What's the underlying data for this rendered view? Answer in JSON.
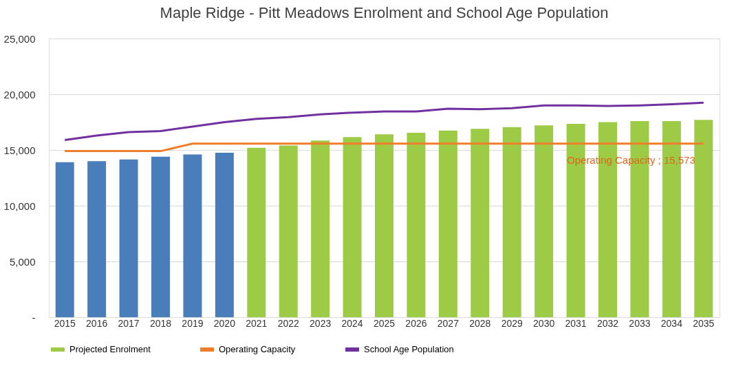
{
  "chart_data": {
    "type": "bar",
    "title": "Maple Ridge - Pitt Meadows Enrolment and School Age Population",
    "categories": [
      "2015",
      "2016",
      "2017",
      "2018",
      "2019",
      "2020",
      "2021",
      "2022",
      "2023",
      "2024",
      "2025",
      "2026",
      "2027",
      "2028",
      "2029",
      "2030",
      "2031",
      "2032",
      "2033",
      "2034",
      "2035"
    ],
    "stacked": true,
    "series": [
      {
        "color": "#4a7ebb",
        "values": [
          13900,
          14000,
          14150,
          14400,
          14600,
          14750,
          null,
          null,
          null,
          null,
          null,
          null,
          null,
          null,
          null,
          null,
          null,
          null,
          null,
          null,
          null
        ]
      },
      {
        "name": "Projected Enrolment",
        "color": "#9dcb45",
        "values": [
          null,
          null,
          null,
          null,
          null,
          null,
          15200,
          15400,
          15850,
          16150,
          16400,
          16550,
          16750,
          16900,
          17050,
          17200,
          17350,
          17500,
          17600,
          17600,
          17700
        ]
      },
      {
        "name": "Operating Capacity",
        "type": "line",
        "color": "#f07d2a",
        "values": [
          14900,
          14900,
          14900,
          14900,
          15573,
          15573,
          15573,
          15573,
          15573,
          15573,
          15573,
          15573,
          15573,
          15573,
          15573,
          15573,
          15573,
          15573,
          15573,
          15573,
          15573
        ]
      },
      {
        "name": "School Age Population",
        "type": "line",
        "color": "#7030a0",
        "values": [
          15900,
          16300,
          16600,
          16700,
          17100,
          17500,
          17800,
          17950,
          18200,
          18350,
          18450,
          18450,
          18700,
          18650,
          18750,
          19000,
          19000,
          18950,
          19000,
          19100,
          19250
        ]
      }
    ],
    "annotations": [
      {
        "text": "Operating Capacity ; 15,573",
        "x": "2035",
        "y": 15573
      }
    ],
    "ylim": [
      0,
      25000
    ],
    "yticks": [
      {
        "value": 0,
        "label": "-"
      },
      {
        "value": 5000,
        "label": "5,000"
      },
      {
        "value": 10000,
        "label": "10,000"
      },
      {
        "value": 15000,
        "label": "15,000"
      },
      {
        "value": 20000,
        "label": "20,000"
      },
      {
        "value": 25000,
        "label": "25,000"
      }
    ],
    "grid": "y",
    "legend": "bottom",
    "line_style": "solid",
    "marker": "none"
  }
}
